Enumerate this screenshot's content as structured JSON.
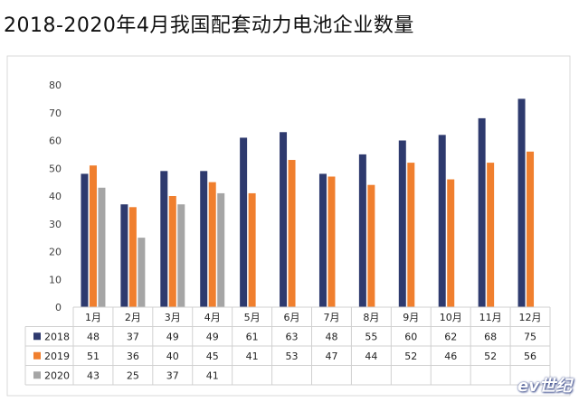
{
  "title": "2018-2020年4月我国配套动力电池企业数量",
  "watermark": "ev世纪",
  "chart_data": {
    "type": "bar",
    "categories": [
      "1月",
      "2月",
      "3月",
      "4月",
      "5月",
      "6月",
      "7月",
      "8月",
      "9月",
      "10月",
      "11月",
      "12月"
    ],
    "series": [
      {
        "name": "2018",
        "color": "#2e3a6e",
        "values": [
          48,
          37,
          49,
          49,
          61,
          63,
          48,
          55,
          60,
          62,
          68,
          75
        ]
      },
      {
        "name": "2019",
        "color": "#f07f2e",
        "values": [
          51,
          36,
          40,
          45,
          41,
          53,
          47,
          44,
          52,
          46,
          52,
          56
        ]
      },
      {
        "name": "2020",
        "color": "#a5a5a5",
        "values": [
          43,
          25,
          37,
          41,
          null,
          null,
          null,
          null,
          null,
          null,
          null,
          null
        ]
      }
    ],
    "ylim": [
      0,
      80
    ],
    "yticks": [
      0,
      10,
      20,
      30,
      40,
      50,
      60,
      70,
      80
    ],
    "grid": false,
    "legend": "data-table"
  }
}
